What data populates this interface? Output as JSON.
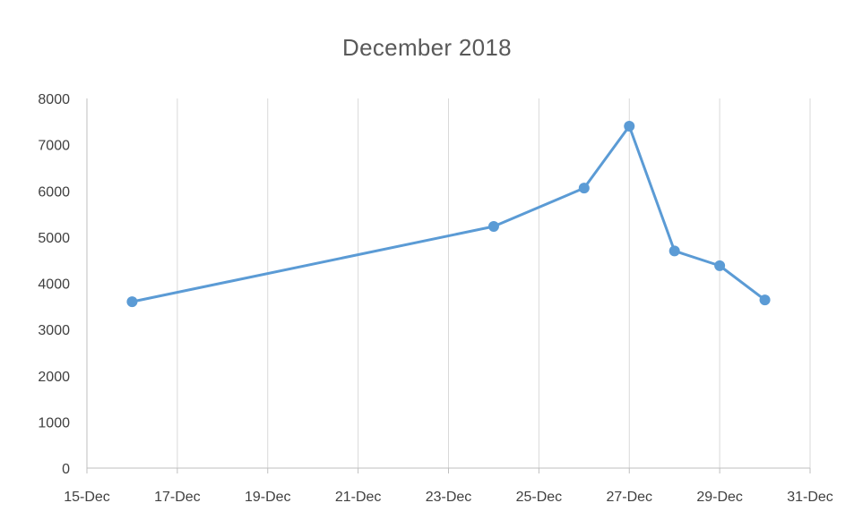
{
  "chart_data": {
    "type": "line",
    "title": "December 2018",
    "xlabel": "",
    "ylabel": "",
    "x_axis": {
      "type": "date",
      "range": [
        "2018-12-15",
        "2018-12-31"
      ],
      "tick_labels": [
        "15-Dec",
        "17-Dec",
        "19-Dec",
        "21-Dec",
        "23-Dec",
        "25-Dec",
        "27-Dec",
        "29-Dec",
        "31-Dec"
      ],
      "tick_dates": [
        "2018-12-15",
        "2018-12-17",
        "2018-12-19",
        "2018-12-21",
        "2018-12-23",
        "2018-12-25",
        "2018-12-27",
        "2018-12-29",
        "2018-12-31"
      ]
    },
    "y_axis": {
      "range": [
        0,
        8000
      ],
      "tick_labels": [
        "0",
        "1000",
        "2000",
        "3000",
        "4000",
        "5000",
        "6000",
        "7000",
        "8000"
      ]
    },
    "grid": "vertical",
    "legend": "none",
    "series": [
      {
        "color": "#5b9bd5",
        "x": [
          "2018-12-16",
          "2018-12-24",
          "2018-12-26",
          "2018-12-27",
          "2018-12-28",
          "2018-12-29",
          "2018-12-30"
        ],
        "y": [
          3600,
          5230,
          6060,
          7400,
          4700,
          4380,
          3640
        ]
      }
    ]
  }
}
